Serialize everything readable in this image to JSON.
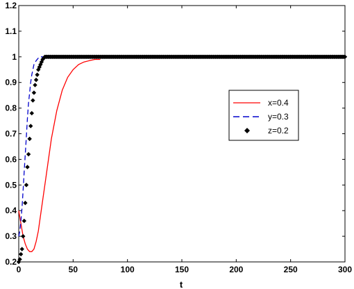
{
  "chart_data": {
    "type": "line",
    "title": "",
    "xlabel": "t",
    "ylabel": "",
    "xlim": [
      0,
      300
    ],
    "ylim": [
      0.2,
      1.2
    ],
    "x_ticks": [
      "0",
      "50",
      "100",
      "150",
      "200",
      "250",
      "300"
    ],
    "y_ticks": [
      "0.2",
      "0.3",
      "0.4",
      "0.5",
      "0.6",
      "0.7",
      "0.8",
      "0.9",
      "1",
      "1.1",
      "1.2"
    ],
    "grid": false,
    "legend_position": "right",
    "series": [
      {
        "name": "x=0.4",
        "style": "solid",
        "color": "#ff0000",
        "x": [
          0,
          2,
          4,
          6,
          8,
          10,
          12,
          14,
          16,
          18,
          20,
          25,
          30,
          35,
          40,
          45,
          50,
          55,
          60,
          65,
          70,
          75
        ],
        "y": [
          0.4,
          0.35,
          0.3,
          0.27,
          0.25,
          0.24,
          0.24,
          0.25,
          0.28,
          0.32,
          0.38,
          0.53,
          0.68,
          0.79,
          0.87,
          0.92,
          0.95,
          0.97,
          0.98,
          0.985,
          0.99,
          0.99
        ]
      },
      {
        "name": "y=0.3",
        "style": "dashed",
        "color": "#0000cc",
        "x": [
          0,
          1,
          2,
          3,
          4,
          5,
          6,
          7,
          8,
          9,
          10,
          11,
          12,
          13,
          14,
          16,
          18,
          20,
          22,
          25,
          28,
          30
        ],
        "y": [
          0.3,
          0.32,
          0.36,
          0.41,
          0.48,
          0.55,
          0.62,
          0.69,
          0.76,
          0.82,
          0.86,
          0.9,
          0.93,
          0.95,
          0.97,
          0.985,
          0.995,
          1.0,
          1.0,
          1.0,
          1.0,
          1.0
        ]
      },
      {
        "name": "z=0.2",
        "style": "markers",
        "color": "#000000",
        "x": [
          0,
          1,
          2,
          3,
          4,
          5,
          6,
          7,
          8,
          9,
          10,
          11,
          12,
          13,
          14,
          15,
          16,
          17,
          18,
          19,
          20,
          21,
          22,
          23,
          24,
          25,
          26,
          27,
          28,
          29,
          30
        ],
        "y": [
          0.2,
          0.21,
          0.23,
          0.25,
          0.3,
          0.36,
          0.43,
          0.5,
          0.57,
          0.62,
          0.68,
          0.73,
          0.78,
          0.83,
          0.86,
          0.89,
          0.91,
          0.93,
          0.95,
          0.96,
          0.97,
          0.98,
          0.99,
          0.995,
          1.0,
          1.0,
          1.0,
          1.0,
          1.0,
          1.0,
          1.0
        ],
        "continue_to": 300,
        "continue_value": 1.0
      }
    ]
  }
}
